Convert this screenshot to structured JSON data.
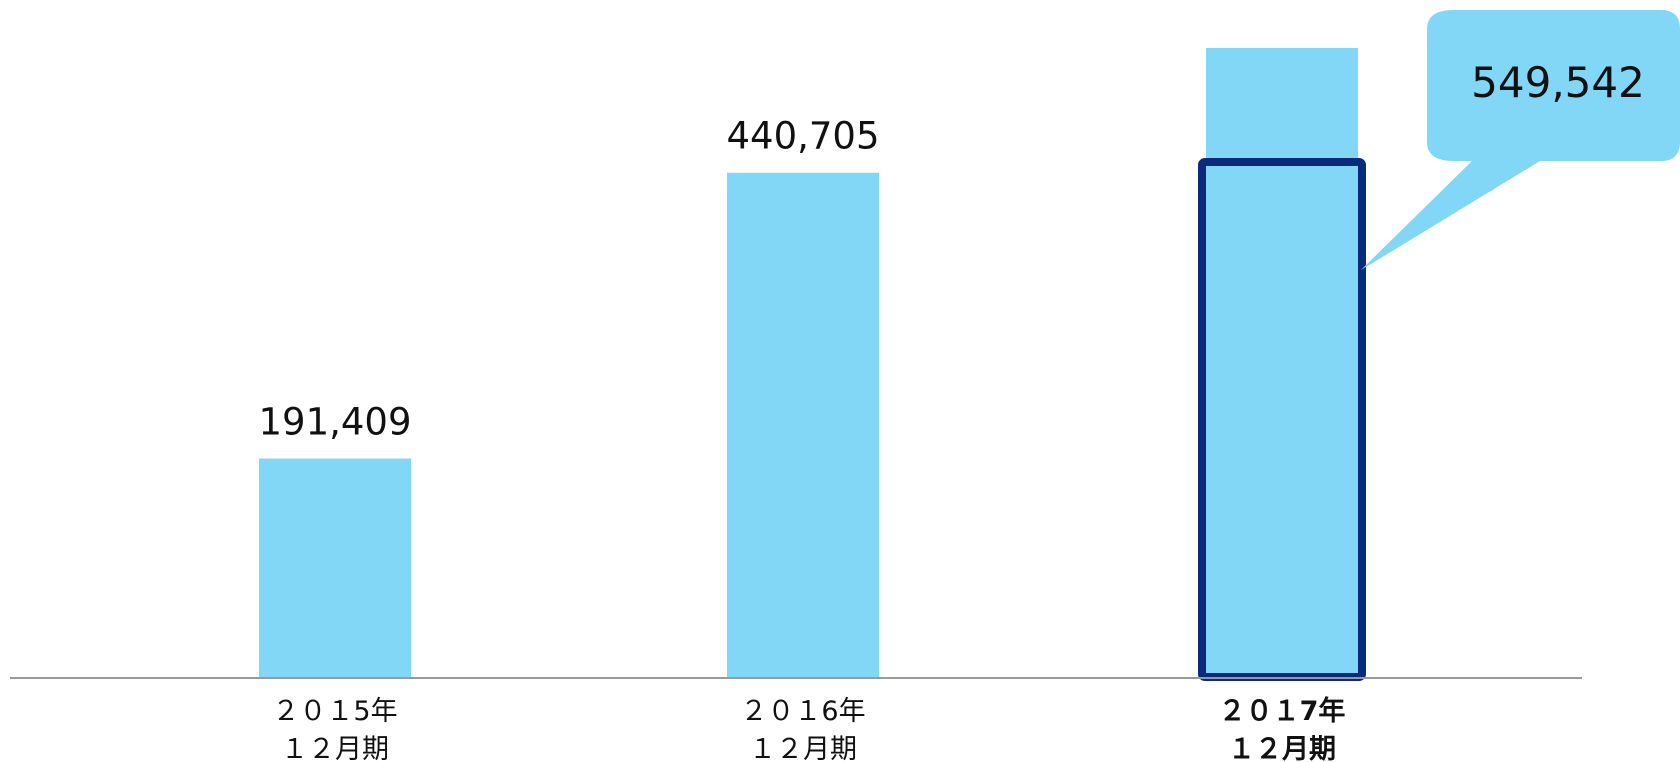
{
  "chart_data": {
    "type": "bar",
    "title": "",
    "xlabel": "",
    "ylabel": "",
    "categories": [
      [
        "２０１5年",
        "１２月期"
      ],
      [
        "２０１6年",
        "１２月期"
      ],
      [
        "２０１7年",
        "１２月期"
      ]
    ],
    "values": [
      191409,
      440705,
      549542
    ],
    "value_labels": [
      "191,409",
      "440,705",
      "549,542"
    ],
    "ylim": [
      0,
      620000
    ],
    "grid": false,
    "legend": "none",
    "highlight_index": 2,
    "highlight_label_style": "callout",
    "colors": {
      "bar": "#82d6f6",
      "highlight_border": "#0a2a7e",
      "callout": "#82d6f6",
      "axis": "#999999"
    }
  }
}
